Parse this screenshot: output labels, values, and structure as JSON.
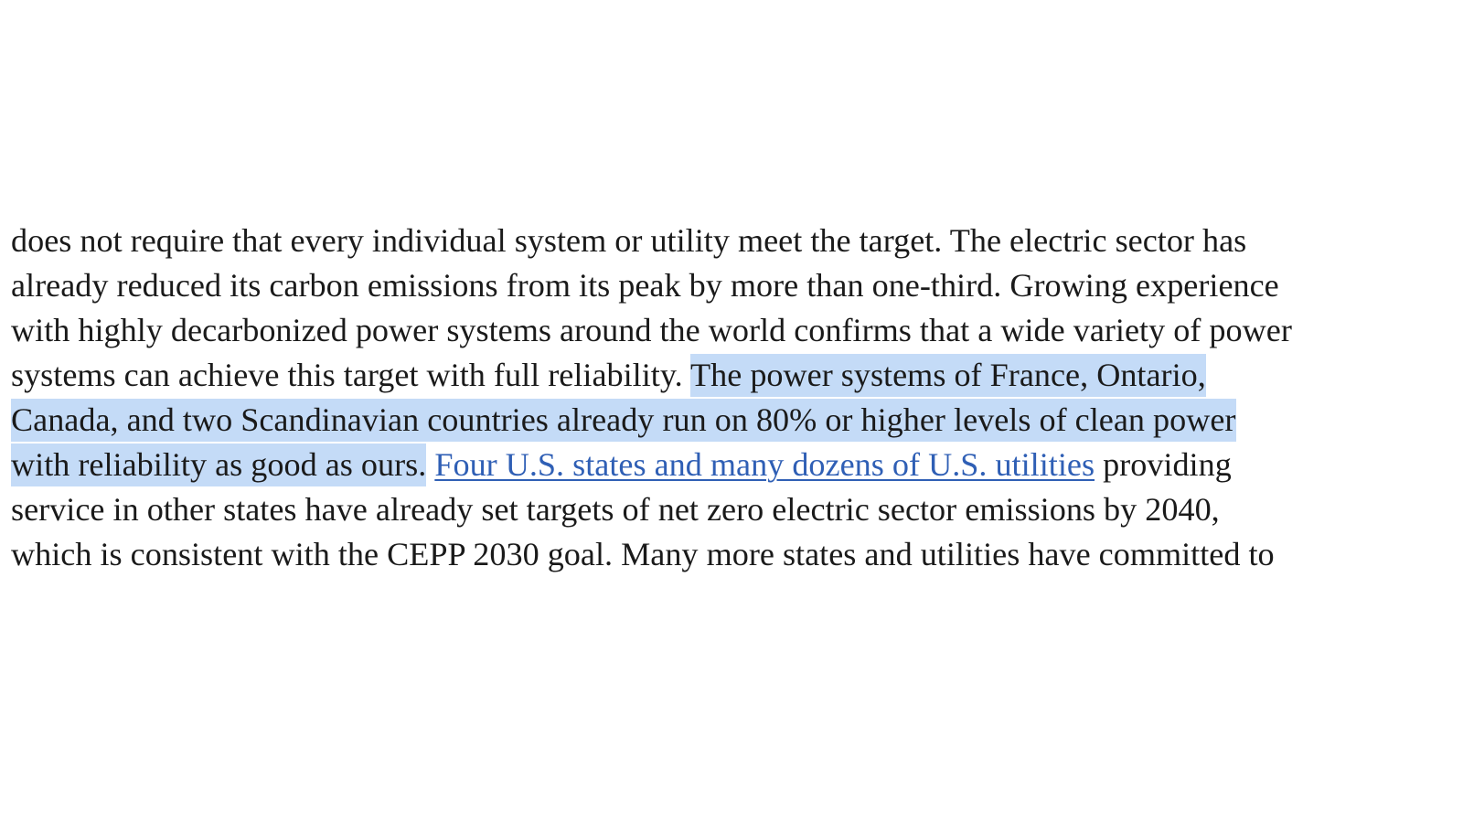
{
  "document": {
    "lines": [
      "does not require that every individual system or utility meet the target. The electric sector has",
      "already reduced its carbon emissions from its peak by more than one-third. Growing experience",
      "with highly decarbonized power systems around the world confirms that a wide variety of power"
    ],
    "line4": {
      "plain": "systems can achieve this target with full reliability. ",
      "selected": "The power systems of France, Ontario,"
    },
    "line5": {
      "selected": "Canada, and two Scandinavian countries already run on 80% or higher levels of clean power"
    },
    "line6": {
      "selected": "with reliability as good as ours.",
      "space": " ",
      "link": "Four U.S. states and many dozens of U.S. utilities",
      "after_link": " providing"
    },
    "lines_end": [
      "service in other states have already set targets of net zero electric sector emissions by 2040,",
      "which is consistent with the CEPP 2030 goal.  Many more states and utilities have committed to"
    ]
  },
  "colors": {
    "text": "#1a1a1a",
    "selection": "#c4dbf7",
    "link": "#2f5fb5",
    "background": "#ffffff"
  }
}
